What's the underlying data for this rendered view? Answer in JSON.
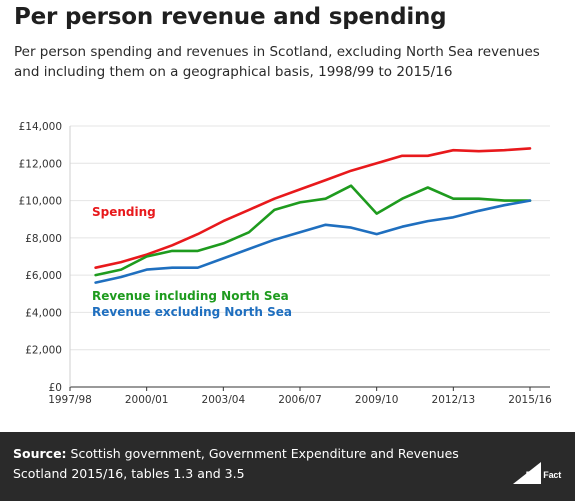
{
  "header": {
    "title": "Per person revenue and spending",
    "subtitle": "Per person spending and revenues in Scotland, excluding North Sea revenues and including them on a geographical basis, 1998/99 to 2015/16"
  },
  "footer": {
    "source_label": "Source:",
    "source_text": "Scottish government, Government Expenditure and Revenues Scotland 2015/16, tables 1.3 and 3.5",
    "logo_text": "Full Fact"
  },
  "chart_data": {
    "type": "line",
    "x": [
      "1998/99",
      "1999/00",
      "2000/01",
      "2001/02",
      "2002/03",
      "2003/04",
      "2004/05",
      "2005/06",
      "2006/07",
      "2007/08",
      "2008/09",
      "2009/10",
      "2010/11",
      "2011/12",
      "2012/13",
      "2013/14",
      "2014/15",
      "2015/16"
    ],
    "x_tick_labels": [
      "1997/98",
      "2000/01",
      "2003/04",
      "2006/07",
      "2009/10",
      "2012/13",
      "2015/16"
    ],
    "y_tick_labels": [
      "£0",
      "£2,000",
      "£4,000",
      "£6,000",
      "£8,000",
      "£10,000",
      "£12,000",
      "£14,000"
    ],
    "ylim": [
      0,
      14000
    ],
    "grid": true,
    "series": [
      {
        "name": "Spending",
        "color": "#e8191c",
        "values": [
          6400,
          6700,
          7100,
          7600,
          8200,
          8900,
          9500,
          10100,
          10600,
          11100,
          11600,
          12000,
          12400,
          12400,
          12700,
          12650,
          12700,
          12800
        ]
      },
      {
        "name": "Revenue including North Sea",
        "color": "#1e9b1e",
        "values": [
          6000,
          6300,
          7000,
          7300,
          7300,
          7700,
          8300,
          9500,
          9900,
          10100,
          10800,
          9300,
          10100,
          10700,
          10100,
          10100,
          10000,
          10000
        ]
      },
      {
        "name": "Revenue excluding North Sea",
        "color": "#1f6fbf",
        "values": [
          5600,
          5900,
          6300,
          6400,
          6400,
          6900,
          7400,
          7900,
          8300,
          8700,
          8550,
          8200,
          8600,
          8900,
          9100,
          9450,
          9750,
          10000
        ]
      }
    ]
  }
}
